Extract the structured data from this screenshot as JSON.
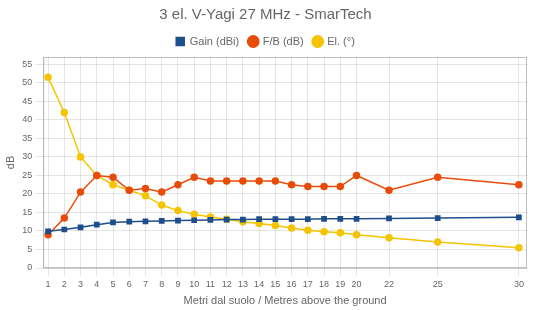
{
  "chart_data": {
    "type": "line",
    "title": "3 el. V-Yagi 27 MHz - SmarTech",
    "xlabel": "Metri dal suolo / Metres above the ground",
    "ylabel": "dB",
    "x": [
      1,
      2,
      3,
      4,
      5,
      6,
      7,
      8,
      9,
      10,
      11,
      12,
      13,
      14,
      15,
      16,
      17,
      18,
      19,
      20,
      22,
      25,
      30
    ],
    "series": [
      {
        "name": "Gain (dBi)",
        "color": "#1f4e8c",
        "marker": "square",
        "values": [
          9.9,
          10.4,
          11.0,
          11.7,
          12.3,
          12.5,
          12.6,
          12.7,
          12.8,
          12.9,
          13.0,
          13.1,
          13.1,
          13.2,
          13.2,
          13.2,
          13.2,
          13.3,
          13.3,
          13.3,
          13.4,
          13.5,
          13.7
        ]
      },
      {
        "name": "F/B (dB)",
        "color": "#e84c0a",
        "marker": "circle",
        "values": [
          9.0,
          13.5,
          20.5,
          25.0,
          24.5,
          21.0,
          21.5,
          20.5,
          22.5,
          24.5,
          23.5,
          23.5,
          23.5,
          23.5,
          23.5,
          22.5,
          22.0,
          22.0,
          22.0,
          25.0,
          21.0,
          24.5,
          22.5
        ]
      },
      {
        "name": "El. (°)",
        "color": "#f5c400",
        "marker": "circle",
        "values": [
          51.5,
          42.0,
          30.0,
          25.0,
          22.5,
          21.0,
          19.5,
          17.0,
          15.5,
          14.5,
          13.8,
          13.2,
          12.5,
          12.0,
          11.5,
          10.8,
          10.2,
          9.8,
          9.5,
          9.0,
          8.2,
          7.0,
          5.5
        ]
      }
    ],
    "xlim": [
      0.7,
      30.5
    ],
    "xticks": [
      1,
      2,
      3,
      4,
      5,
      6,
      7,
      8,
      9,
      10,
      11,
      12,
      13,
      14,
      15,
      16,
      17,
      18,
      19,
      20,
      22,
      25,
      30
    ],
    "ylim": [
      0,
      57
    ],
    "yticks": [
      0,
      5,
      10,
      15,
      20,
      25,
      30,
      35,
      40,
      45,
      50,
      55
    ],
    "grid": true,
    "legend": "top"
  }
}
